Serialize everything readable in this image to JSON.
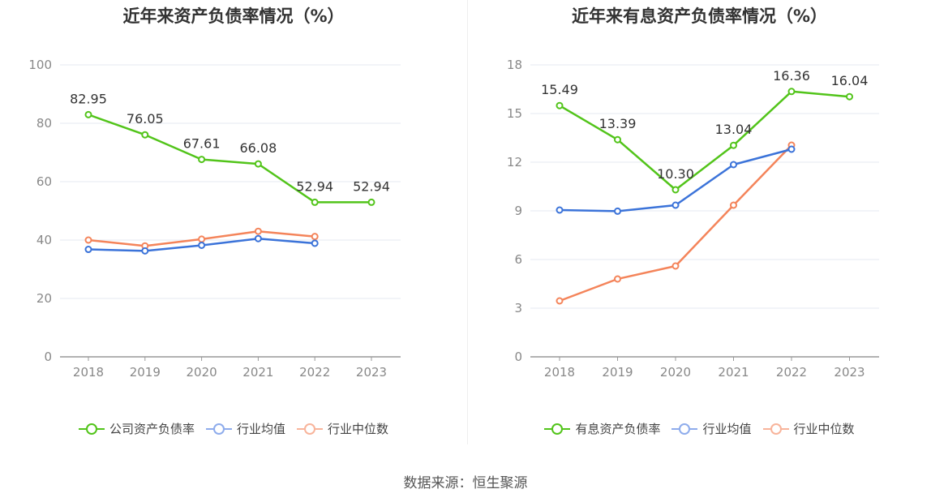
{
  "source_text": "数据来源：恒生聚源",
  "charts": [
    {
      "title": "近年来资产负债率情况（%）",
      "legend": [
        "公司资产负债率",
        "行业均值",
        "行业中位数"
      ],
      "colors": [
        "#52c41a",
        "#3b73d9",
        "#f4845a"
      ],
      "legend_colors": [
        "#52c41a",
        "#8eacec",
        "#f8b49b"
      ]
    },
    {
      "title": "近年来有息资产负债率情况（%）",
      "legend": [
        "有息资产负债率",
        "行业均值",
        "行业中位数"
      ],
      "colors": [
        "#52c41a",
        "#3b73d9",
        "#f4845a"
      ],
      "legend_colors": [
        "#52c41a",
        "#8eacec",
        "#f8b49b"
      ]
    }
  ],
  "chart_data": [
    {
      "type": "line",
      "title": "近年来资产负债率情况（%）",
      "categories": [
        "2018",
        "2019",
        "2020",
        "2021",
        "2022",
        "2023"
      ],
      "ylim": [
        0,
        100
      ],
      "yticks": [
        0,
        20,
        40,
        60,
        80,
        100
      ],
      "grid": true,
      "legend_position": "bottom",
      "series": [
        {
          "name": "公司资产负债率",
          "values": [
            82.95,
            76.05,
            67.61,
            66.08,
            52.94,
            52.94
          ],
          "labels": [
            "82.95",
            "76.05",
            "67.61",
            "66.08",
            "52.94",
            "52.94"
          ]
        },
        {
          "name": "行业均值",
          "values": [
            36.8,
            36.3,
            38.2,
            40.5,
            38.9,
            null
          ]
        },
        {
          "name": "行业中位数",
          "values": [
            40.0,
            38.0,
            40.3,
            43.0,
            41.2,
            null
          ]
        }
      ]
    },
    {
      "type": "line",
      "title": "近年来有息资产负债率情况（%）",
      "categories": [
        "2018",
        "2019",
        "2020",
        "2021",
        "2022",
        "2023"
      ],
      "ylim": [
        0,
        18
      ],
      "yticks": [
        0,
        3,
        6,
        9,
        12,
        15,
        18
      ],
      "grid": true,
      "legend_position": "bottom",
      "series": [
        {
          "name": "有息资产负债率",
          "values": [
            15.49,
            13.39,
            10.3,
            13.04,
            16.36,
            16.04
          ],
          "labels": [
            "15.49",
            "13.39",
            "10.30",
            "13.04",
            "16.36",
            "16.04"
          ]
        },
        {
          "name": "行业均值",
          "values": [
            9.05,
            8.98,
            9.35,
            11.85,
            12.8,
            null
          ]
        },
        {
          "name": "行业中位数",
          "values": [
            3.45,
            4.8,
            5.6,
            9.35,
            13.05,
            null
          ]
        }
      ]
    }
  ]
}
